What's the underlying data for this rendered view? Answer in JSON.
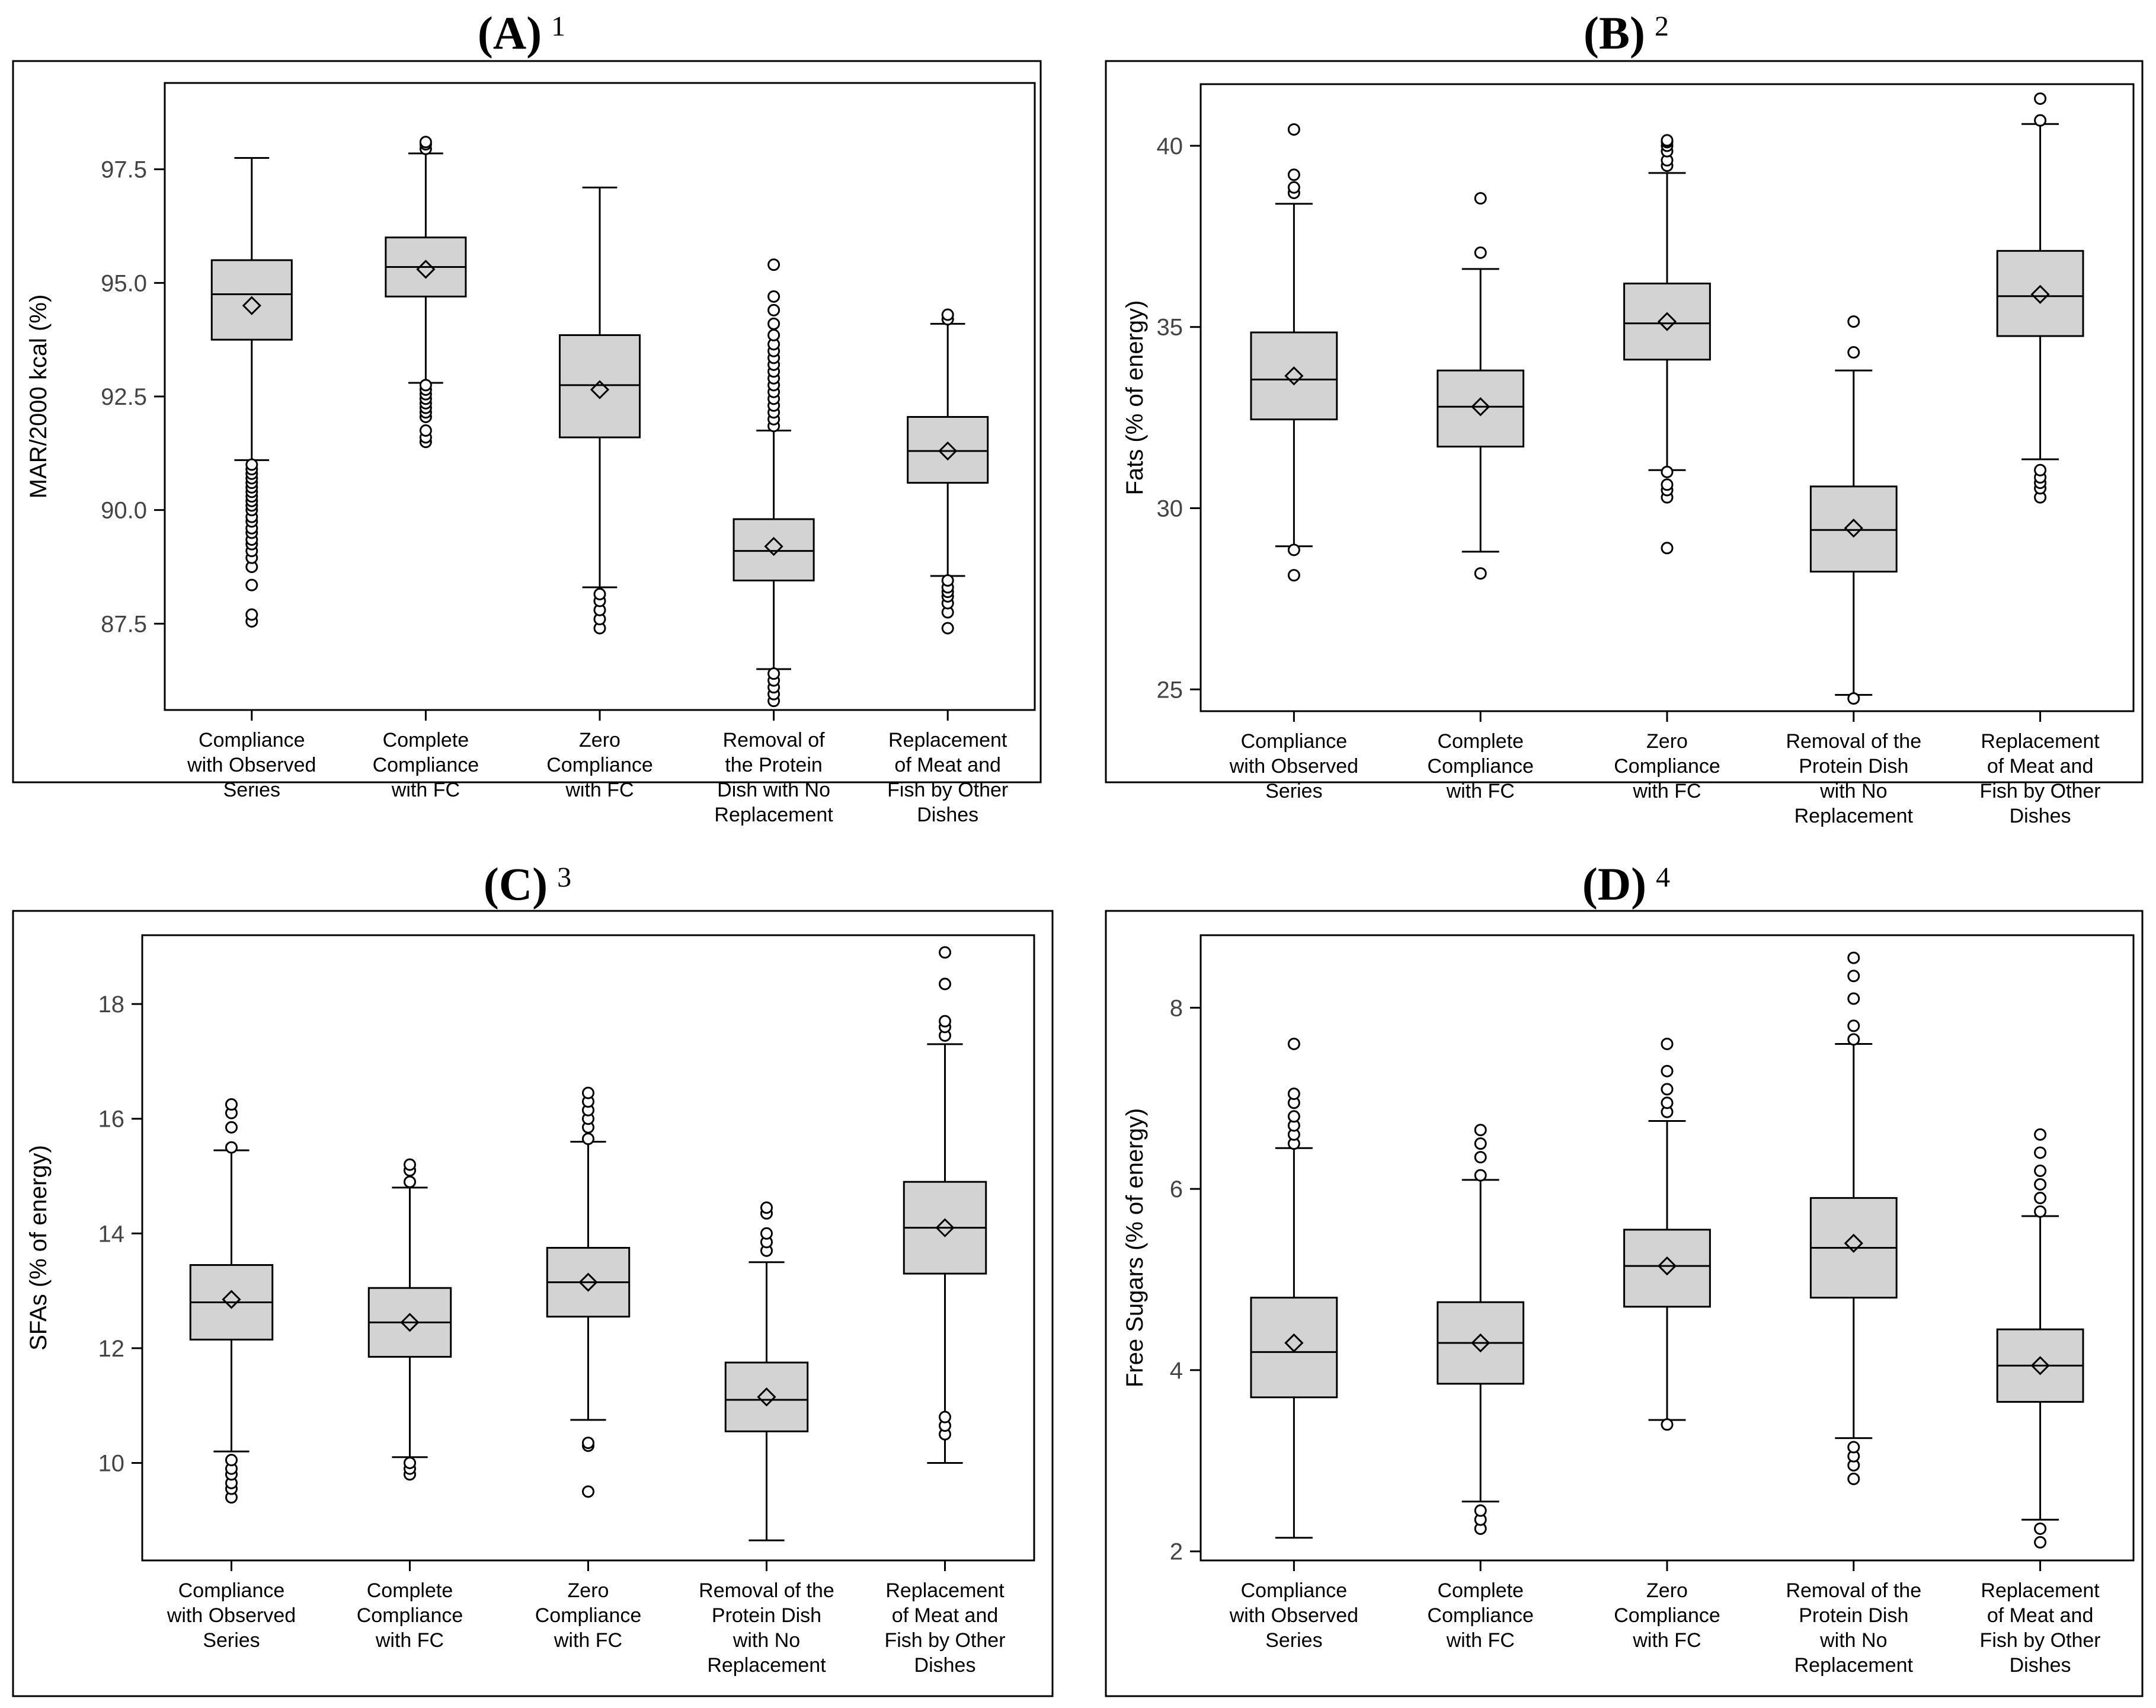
{
  "figure": {
    "category_labels": [
      [
        "Compliance",
        "with Observed",
        "Series"
      ],
      [
        "Complete",
        "Compliance",
        "with FC"
      ],
      [
        "Zero",
        "Compliance",
        "with FC"
      ],
      [
        "Removal of",
        "the Protein",
        "Dish with No",
        "Replacement"
      ],
      [
        "Replacement",
        "of Meat and",
        "Fish by Other",
        "Dishes"
      ]
    ]
  },
  "chart_data": [
    {
      "type": "box",
      "panel": "A",
      "footnote": "1",
      "ylabel": "MAR/2000 kcal (%)",
      "ylim": [
        85.6,
        99.4
      ],
      "yticks": [
        "87.5",
        "90.0",
        "92.5",
        "95.0",
        "97.5"
      ],
      "categories": [
        "Compliance with Observed Series",
        "Complete Compliance with FC",
        "Zero Compliance with FC",
        "Removal of the Protein Dish with No Replacement",
        "Replacement of Meat and Fish by Other Dishes"
      ],
      "category_lines": [
        [
          "Compliance",
          "with Observed",
          "Series"
        ],
        [
          "Complete",
          "Compliance",
          "with FC"
        ],
        [
          "Zero",
          "Compliance",
          "with FC"
        ],
        [
          "Removal of",
          "the Protein",
          "Dish with No",
          "Replacement"
        ],
        [
          "Replacement",
          "of Meat and",
          "Fish by Other",
          "Dishes"
        ]
      ],
      "boxes": [
        {
          "whisker_low": 91.1,
          "q1": 93.75,
          "median": 94.75,
          "q3": 95.5,
          "whisker_high": 97.75,
          "mean": 94.5,
          "outliers": [
            87.55,
            87.7,
            88.35,
            88.75,
            88.95,
            89.1,
            89.25,
            89.35,
            89.5,
            89.6,
            89.75,
            89.85,
            90.0,
            90.1,
            90.2,
            90.3,
            90.4,
            90.5,
            90.6,
            90.7,
            90.8,
            90.9,
            91.0
          ]
        },
        {
          "whisker_low": 92.8,
          "q1": 94.7,
          "median": 95.35,
          "q3": 96.0,
          "whisker_high": 97.85,
          "mean": 95.3,
          "outliers": [
            91.5,
            91.6,
            91.75,
            92.05,
            92.15,
            92.25,
            92.35,
            92.45,
            92.55,
            92.65,
            92.75,
            97.95,
            98.05,
            98.1
          ]
        },
        {
          "whisker_low": 88.3,
          "q1": 91.6,
          "median": 92.75,
          "q3": 93.85,
          "whisker_high": 97.1,
          "mean": 92.65,
          "outliers": [
            87.4,
            87.6,
            87.8,
            88.0,
            88.15
          ]
        },
        {
          "whisker_low": 86.5,
          "q1": 88.45,
          "median": 89.1,
          "q3": 89.8,
          "whisker_high": 91.75,
          "mean": 89.2,
          "outliers": [
            85.8,
            85.95,
            86.1,
            86.25,
            86.4,
            91.85,
            92.0,
            92.15,
            92.3,
            92.45,
            92.6,
            92.75,
            92.9,
            93.05,
            93.2,
            93.35,
            93.5,
            93.65,
            93.85,
            94.1,
            94.4,
            94.7,
            95.4
          ]
        },
        {
          "whisker_low": 88.55,
          "q1": 90.6,
          "median": 91.3,
          "q3": 92.05,
          "whisker_high": 94.1,
          "mean": 91.3,
          "outliers": [
            87.4,
            87.75,
            87.95,
            88.1,
            88.2,
            88.3,
            88.45,
            94.2,
            94.3
          ]
        }
      ]
    },
    {
      "type": "box",
      "panel": "B",
      "footnote": "2",
      "ylabel": "Fats (% of energy)",
      "ylim": [
        24.4,
        41.7
      ],
      "yticks": [
        "25",
        "30",
        "35",
        "40"
      ],
      "categories": [
        "Compliance with Observed Series",
        "Complete Compliance with FC",
        "Zero Compliance with FC",
        "Removal of the Protein Dish with No Replacement",
        "Replacement of Meat and Fish by Other Dishes"
      ],
      "category_lines": [
        [
          "Compliance",
          "with Observed",
          "Series"
        ],
        [
          "Complete",
          "Compliance",
          "with FC"
        ],
        [
          "Zero",
          "Compliance",
          "with FC"
        ],
        [
          "Removal of the",
          "Protein Dish",
          "with No",
          "Replacement"
        ],
        [
          "Replacement",
          "of Meat and",
          "Fish by Other",
          "Dishes"
        ]
      ],
      "boxes": [
        {
          "whisker_low": 28.95,
          "q1": 32.45,
          "median": 33.55,
          "q3": 34.85,
          "whisker_high": 38.4,
          "mean": 33.65,
          "outliers": [
            28.15,
            28.85,
            38.7,
            38.85,
            39.2,
            40.45
          ]
        },
        {
          "whisker_low": 28.8,
          "q1": 31.7,
          "median": 32.8,
          "q3": 33.8,
          "whisker_high": 36.6,
          "mean": 32.8,
          "outliers": [
            28.2,
            37.05,
            38.55
          ]
        },
        {
          "whisker_low": 31.05,
          "q1": 34.1,
          "median": 35.1,
          "q3": 36.2,
          "whisker_high": 39.25,
          "mean": 35.15,
          "outliers": [
            28.9,
            30.3,
            30.5,
            30.65,
            31.0,
            39.45,
            39.6,
            39.85,
            40.0,
            40.1,
            40.15
          ]
        },
        {
          "whisker_low": 24.85,
          "q1": 28.25,
          "median": 29.4,
          "q3": 30.6,
          "whisker_high": 33.8,
          "mean": 29.45,
          "outliers": [
            24.75,
            34.3,
            35.15
          ]
        },
        {
          "whisker_low": 31.35,
          "q1": 34.75,
          "median": 35.85,
          "q3": 37.1,
          "whisker_high": 40.6,
          "mean": 35.9,
          "outliers": [
            30.3,
            30.55,
            30.7,
            30.85,
            31.05,
            40.7,
            41.3
          ]
        }
      ]
    },
    {
      "type": "box",
      "panel": "C",
      "footnote": "3",
      "ylabel": "SFAs (% of energy)",
      "ylim": [
        8.3,
        19.2
      ],
      "yticks": [
        "10",
        "12",
        "14",
        "16",
        "18"
      ],
      "categories": [
        "Compliance with Observed Series",
        "Complete Compliance with FC",
        "Zero Compliance with FC",
        "Removal of the Protein Dish with No Replacement",
        "Replacement of Meat and Fish by Other Dishes"
      ],
      "category_lines": [
        [
          "Compliance",
          "with Observed",
          "Series"
        ],
        [
          "Complete",
          "Compliance",
          "with FC"
        ],
        [
          "Zero",
          "Compliance",
          "with FC"
        ],
        [
          "Removal of the",
          "Protein Dish",
          "with No",
          "Replacement"
        ],
        [
          "Replacement",
          "of Meat and",
          "Fish by Other",
          "Dishes"
        ]
      ],
      "boxes": [
        {
          "whisker_low": 10.2,
          "q1": 12.15,
          "median": 12.8,
          "q3": 13.45,
          "whisker_high": 15.45,
          "mean": 12.85,
          "outliers": [
            9.4,
            9.55,
            9.65,
            9.8,
            9.9,
            10.05,
            15.5,
            15.85,
            16.1,
            16.25
          ]
        },
        {
          "whisker_low": 10.1,
          "q1": 11.85,
          "median": 12.45,
          "q3": 13.05,
          "whisker_high": 14.8,
          "mean": 12.45,
          "outliers": [
            9.8,
            9.9,
            10.0,
            14.9,
            15.1,
            15.2
          ]
        },
        {
          "whisker_low": 10.75,
          "q1": 12.55,
          "median": 13.15,
          "q3": 13.75,
          "whisker_high": 15.6,
          "mean": 13.15,
          "outliers": [
            9.5,
            10.3,
            10.35,
            15.65,
            15.85,
            16.0,
            16.15,
            16.3,
            16.45
          ]
        },
        {
          "whisker_low": 8.65,
          "q1": 10.55,
          "median": 11.1,
          "q3": 11.75,
          "whisker_high": 13.5,
          "mean": 11.15,
          "outliers": [
            13.7,
            13.85,
            14.0,
            14.35,
            14.45
          ]
        },
        {
          "whisker_low": 10.0,
          "q1": 13.3,
          "median": 14.1,
          "q3": 14.9,
          "whisker_high": 17.3,
          "mean": 14.1,
          "outliers": [
            10.5,
            10.65,
            10.8,
            17.45,
            17.6,
            17.7,
            18.35,
            18.9
          ]
        }
      ]
    },
    {
      "type": "box",
      "panel": "D",
      "footnote": "4",
      "ylabel": "Free Sugars (% of energy)",
      "ylim": [
        1.9,
        8.8
      ],
      "yticks": [
        "2",
        "4",
        "6",
        "8"
      ],
      "categories": [
        "Compliance with Observed Series",
        "Complete Compliance with FC",
        "Zero Compliance with FC",
        "Removal of the Protein Dish with No Replacement",
        "Replacement of Meat and Fish by Other Dishes"
      ],
      "category_lines": [
        [
          "Compliance",
          "with Observed",
          "Series"
        ],
        [
          "Complete",
          "Compliance",
          "with FC"
        ],
        [
          "Zero",
          "Compliance",
          "with FC"
        ],
        [
          "Removal of the",
          "Protein Dish",
          "with No",
          "Replacement"
        ],
        [
          "Replacement",
          "of Meat and",
          "Fish by Other",
          "Dishes"
        ]
      ],
      "boxes": [
        {
          "whisker_low": 2.15,
          "q1": 3.7,
          "median": 4.2,
          "q3": 4.8,
          "whisker_high": 6.45,
          "mean": 4.3,
          "outliers": [
            6.5,
            6.6,
            6.7,
            6.8,
            6.95,
            7.05,
            7.6
          ]
        },
        {
          "whisker_low": 2.55,
          "q1": 3.85,
          "median": 4.3,
          "q3": 4.75,
          "whisker_high": 6.1,
          "mean": 4.3,
          "outliers": [
            2.25,
            2.35,
            2.45,
            6.15,
            6.35,
            6.5,
            6.65
          ]
        },
        {
          "whisker_low": 3.45,
          "q1": 4.7,
          "median": 5.15,
          "q3": 5.55,
          "whisker_high": 6.75,
          "mean": 5.15,
          "outliers": [
            3.4,
            6.85,
            6.95,
            7.1,
            7.3,
            7.6
          ]
        },
        {
          "whisker_low": 3.25,
          "q1": 4.8,
          "median": 5.35,
          "q3": 5.9,
          "whisker_high": 7.6,
          "mean": 5.4,
          "outliers": [
            2.8,
            2.95,
            3.05,
            3.15,
            7.65,
            7.8,
            8.1,
            8.35,
            8.55
          ]
        },
        {
          "whisker_low": 2.35,
          "q1": 3.65,
          "median": 4.05,
          "q3": 4.45,
          "whisker_high": 5.7,
          "mean": 4.05,
          "outliers": [
            2.1,
            2.25,
            5.75,
            5.9,
            6.05,
            6.2,
            6.4,
            6.6
          ]
        }
      ]
    }
  ]
}
